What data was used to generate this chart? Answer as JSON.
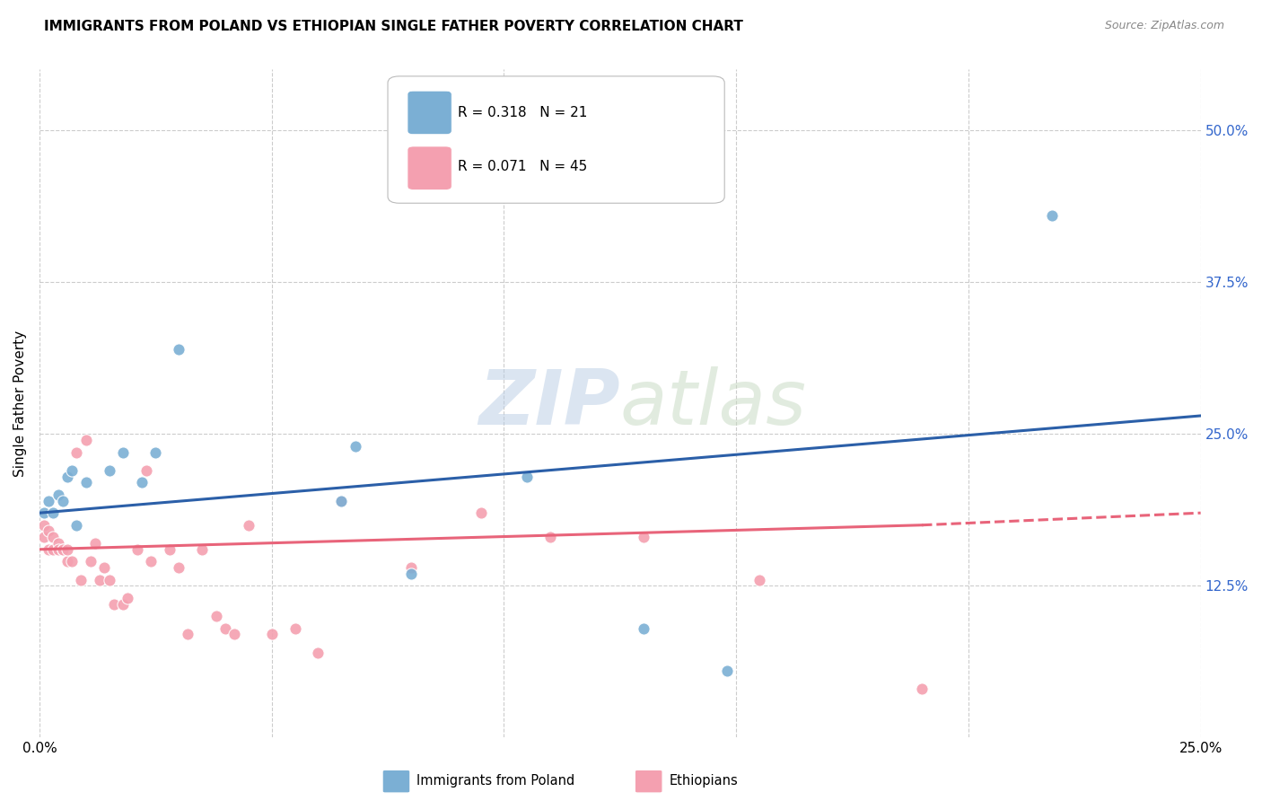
{
  "title": "IMMIGRANTS FROM POLAND VS ETHIOPIAN SINGLE FATHER POVERTY CORRELATION CHART",
  "source": "Source: ZipAtlas.com",
  "xlabel": "",
  "ylabel": "Single Father Poverty",
  "xlim": [
    0.0,
    0.25
  ],
  "ylim": [
    0.0,
    0.55
  ],
  "xtick_positions": [
    0.0,
    0.25
  ],
  "xticklabels": [
    "0.0%",
    "25.0%"
  ],
  "ytick_positions": [
    0.125,
    0.25,
    0.375,
    0.5
  ],
  "ytick_labels": [
    "12.5%",
    "25.0%",
    "37.5%",
    "50.0%"
  ],
  "poland_R": 0.318,
  "poland_N": 21,
  "ethiopia_R": 0.071,
  "ethiopia_N": 45,
  "poland_color": "#7BAFD4",
  "ethiopia_color": "#F4A0B0",
  "poland_line_color": "#2B5FA8",
  "ethiopia_line_color": "#E8647A",
  "poland_scatter_x": [
    0.001,
    0.002,
    0.003,
    0.004,
    0.005,
    0.006,
    0.007,
    0.008,
    0.01,
    0.015,
    0.018,
    0.022,
    0.025,
    0.03,
    0.065,
    0.068,
    0.08,
    0.105,
    0.13,
    0.148,
    0.218
  ],
  "poland_scatter_y": [
    0.185,
    0.195,
    0.185,
    0.2,
    0.195,
    0.215,
    0.22,
    0.175,
    0.21,
    0.22,
    0.235,
    0.21,
    0.235,
    0.32,
    0.195,
    0.24,
    0.135,
    0.215,
    0.09,
    0.055,
    0.43
  ],
  "ethiopia_scatter_x": [
    0.001,
    0.001,
    0.002,
    0.002,
    0.003,
    0.003,
    0.004,
    0.004,
    0.005,
    0.005,
    0.006,
    0.006,
    0.007,
    0.008,
    0.009,
    0.01,
    0.011,
    0.012,
    0.013,
    0.014,
    0.015,
    0.016,
    0.018,
    0.019,
    0.021,
    0.023,
    0.024,
    0.028,
    0.03,
    0.032,
    0.035,
    0.038,
    0.04,
    0.042,
    0.045,
    0.05,
    0.055,
    0.06,
    0.065,
    0.08,
    0.095,
    0.11,
    0.13,
    0.155,
    0.19
  ],
  "ethiopia_scatter_y": [
    0.175,
    0.165,
    0.17,
    0.155,
    0.165,
    0.155,
    0.16,
    0.155,
    0.155,
    0.155,
    0.145,
    0.155,
    0.145,
    0.235,
    0.13,
    0.245,
    0.145,
    0.16,
    0.13,
    0.14,
    0.13,
    0.11,
    0.11,
    0.115,
    0.155,
    0.22,
    0.145,
    0.155,
    0.14,
    0.085,
    0.155,
    0.1,
    0.09,
    0.085,
    0.175,
    0.085,
    0.09,
    0.07,
    0.195,
    0.14,
    0.185,
    0.165,
    0.165,
    0.13,
    0.04
  ],
  "watermark_zip": "ZIP",
  "watermark_atlas": "atlas",
  "legend_label_poland": "Immigrants from Poland",
  "legend_label_ethiopia": "Ethiopians",
  "background_color": "#ffffff",
  "grid_color": "#cccccc",
  "ytick_color": "#3366CC"
}
